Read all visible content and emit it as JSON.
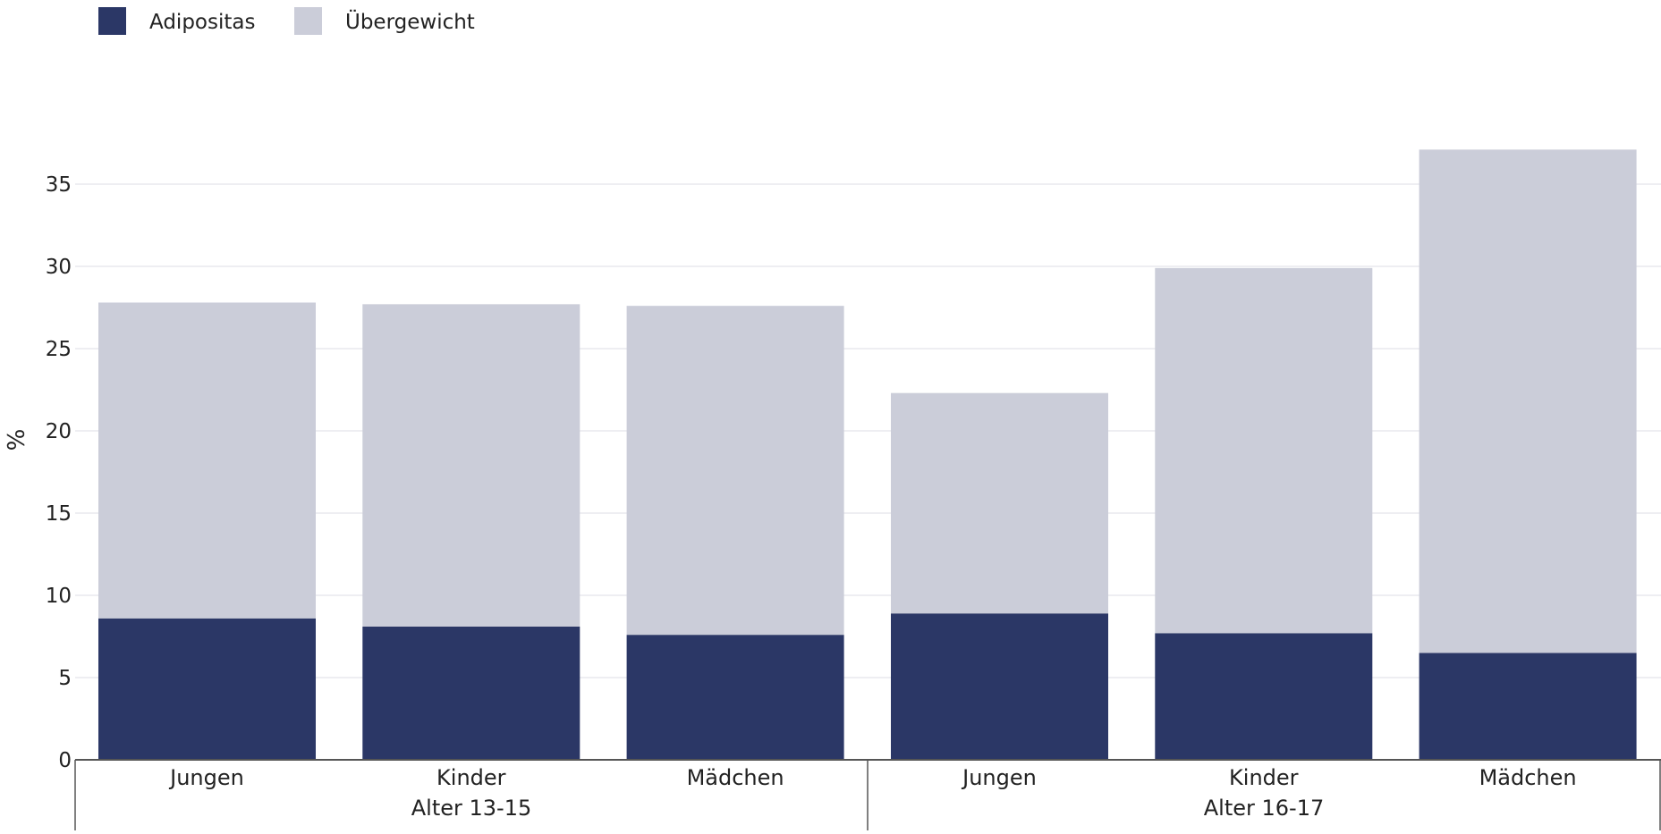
{
  "chart_data": {
    "type": "bar",
    "stacked": true,
    "ylabel": "%",
    "ylim": [
      0,
      37.2
    ],
    "yticks": [
      "0",
      "5",
      "10",
      "15",
      "20",
      "25",
      "30",
      "35"
    ],
    "grid": true,
    "legend_position": "top-left",
    "groups": [
      {
        "label": "Alter 13-15",
        "categories": [
          "Jungen",
          "Kinder",
          "Mädchen"
        ]
      },
      {
        "label": "Alter 16-17",
        "categories": [
          "Jungen",
          "Kinder",
          "Mädchen"
        ]
      }
    ],
    "series": [
      {
        "name": "Adipositas",
        "color": "#2b3766",
        "values": [
          8.6,
          8.1,
          7.6,
          8.9,
          7.7,
          6.5
        ]
      },
      {
        "name": "Übergewicht",
        "color": "#cbcdd9",
        "values": [
          19.2,
          19.6,
          20.0,
          13.4,
          22.2,
          30.6
        ]
      }
    ]
  }
}
